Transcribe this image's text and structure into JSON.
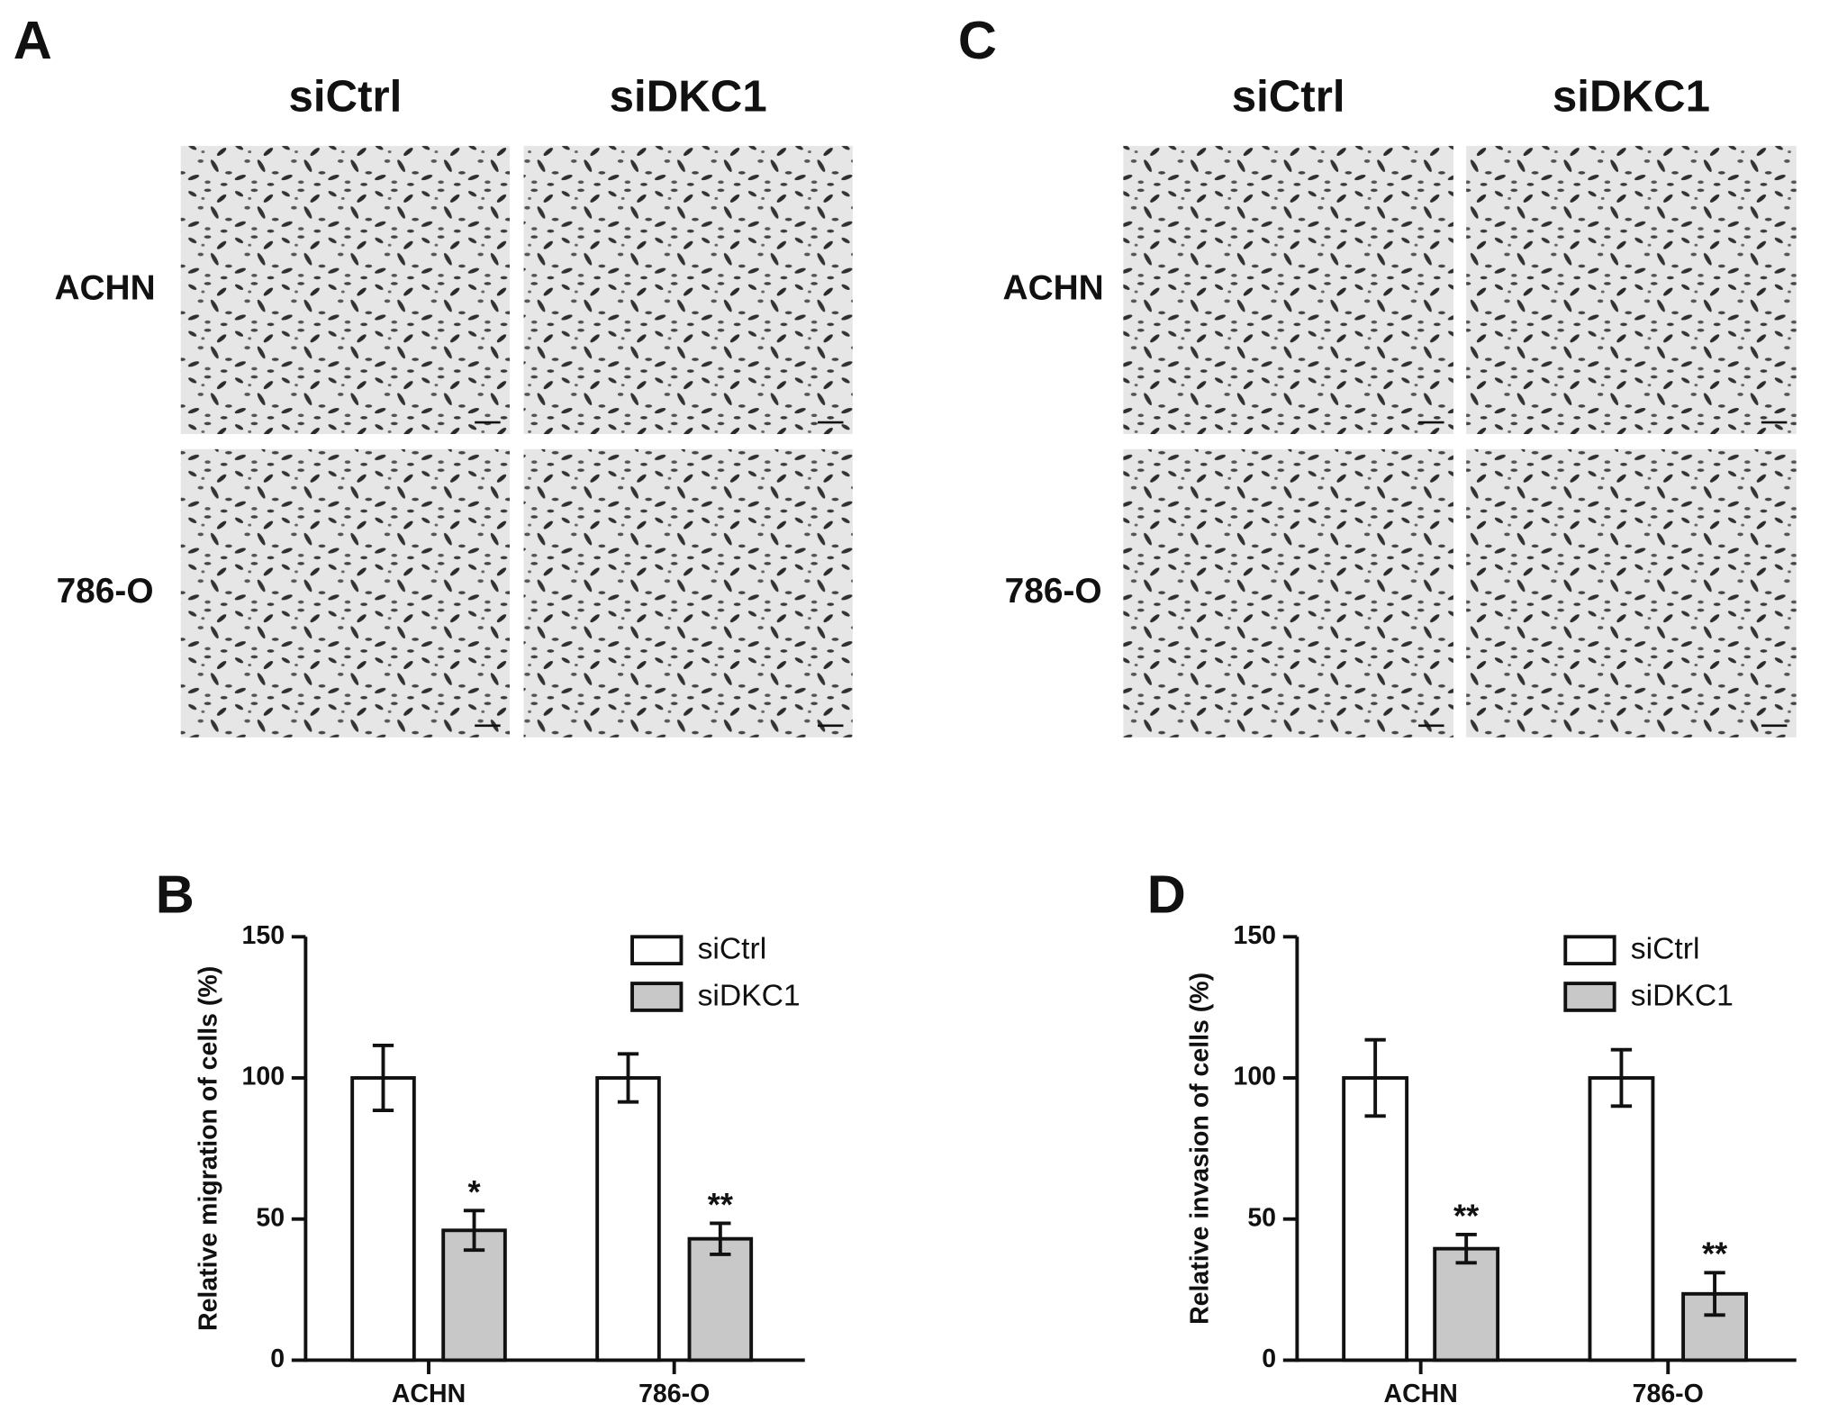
{
  "panels": [
    {
      "letter": "A",
      "columns": [
        "siCtrl",
        "siDKC1"
      ],
      "rows": [
        "ACHN",
        "786-O"
      ]
    },
    {
      "letter": "C",
      "columns": [
        "siCtrl",
        "siDKC1"
      ],
      "rows": [
        "ACHN",
        "786-O"
      ]
    }
  ],
  "chart_data": [
    {
      "type": "bar",
      "panel": "B",
      "y_label": "Relative migration of cells (%)",
      "categories": [
        "ACHN",
        "786-O"
      ],
      "series": [
        {
          "name": "siCtrl",
          "color": "#ffffff",
          "values": [
            100,
            100
          ],
          "errors": [
            11.5,
            8.5
          ]
        },
        {
          "name": "siDKC1",
          "color": "#c8c8c8",
          "values": [
            46,
            43
          ],
          "errors": [
            7,
            5.5
          ],
          "annotations": [
            "*",
            "**"
          ]
        }
      ],
      "ylim": [
        0,
        150
      ],
      "yticks": [
        0,
        50,
        100,
        150
      ]
    },
    {
      "type": "bar",
      "panel": "D",
      "y_label": "Relative invasion of cells (%)",
      "categories": [
        "ACHN",
        "786-O"
      ],
      "series": [
        {
          "name": "siCtrl",
          "color": "#ffffff",
          "values": [
            100,
            100
          ],
          "errors": [
            13.5,
            10
          ]
        },
        {
          "name": "siDKC1",
          "color": "#c8c8c8",
          "values": [
            39.5,
            23.5
          ],
          "errors": [
            5,
            7.5
          ],
          "annotations": [
            "**",
            "**"
          ]
        }
      ],
      "ylim": [
        0,
        150
      ],
      "yticks": [
        0,
        50,
        100,
        150
      ]
    }
  ]
}
